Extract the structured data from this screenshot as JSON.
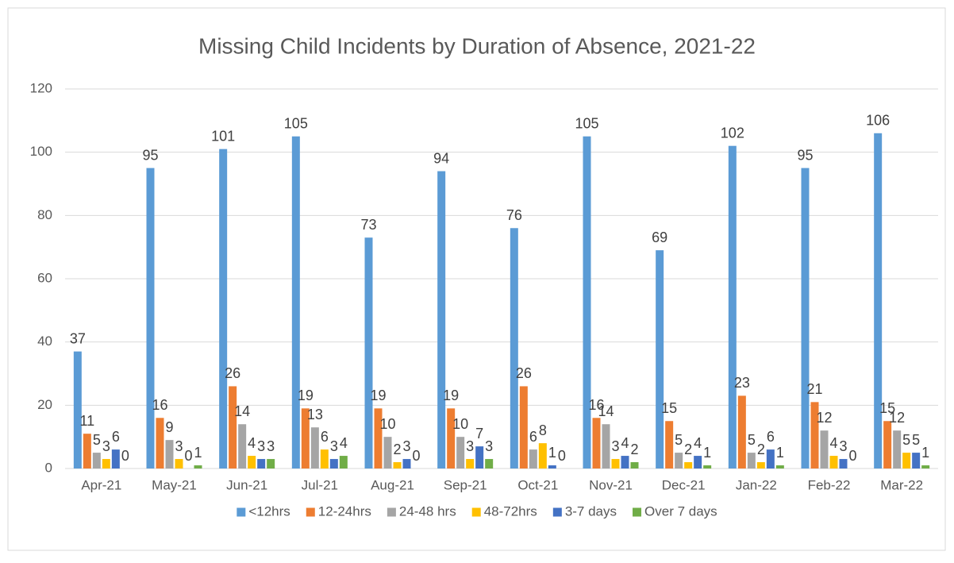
{
  "chart_data": {
    "type": "bar",
    "title": "Missing Child Incidents by Duration of Absence, 2021-22",
    "categories": [
      "Apr-21",
      "May-21",
      "Jun-21",
      "Jul-21",
      "Aug-21",
      "Sep-21",
      "Oct-21",
      "Nov-21",
      "Dec-21",
      "Jan-22",
      "Feb-22",
      "Mar-22"
    ],
    "series": [
      {
        "name": "<12hrs",
        "color": "#5b9bd5",
        "values": [
          37,
          95,
          101,
          105,
          73,
          94,
          76,
          105,
          69,
          102,
          95,
          106
        ]
      },
      {
        "name": "12-24hrs",
        "color": "#ed7d31",
        "values": [
          11,
          16,
          26,
          19,
          19,
          19,
          26,
          16,
          15,
          23,
          21,
          15
        ]
      },
      {
        "name": "24-48 hrs",
        "color": "#a5a5a5",
        "values": [
          5,
          9,
          14,
          13,
          10,
          10,
          6,
          14,
          5,
          5,
          12,
          12
        ]
      },
      {
        "name": "48-72hrs",
        "color": "#ffc000",
        "values": [
          3,
          3,
          4,
          6,
          2,
          3,
          8,
          3,
          2,
          2,
          4,
          5
        ]
      },
      {
        "name": "3-7 days",
        "color": "#4472c4",
        "values": [
          6,
          0,
          3,
          3,
          3,
          7,
          1,
          4,
          4,
          6,
          3,
          5
        ]
      },
      {
        "name": "Over 7 days",
        "color": "#70ad47",
        "values": [
          0,
          1,
          3,
          4,
          0,
          3,
          0,
          2,
          1,
          1,
          0,
          1
        ]
      }
    ],
    "ylim": [
      0,
      120
    ],
    "yticks": [
      0,
      20,
      40,
      60,
      80,
      100,
      120
    ],
    "grid": true,
    "legend": "bottom"
  }
}
